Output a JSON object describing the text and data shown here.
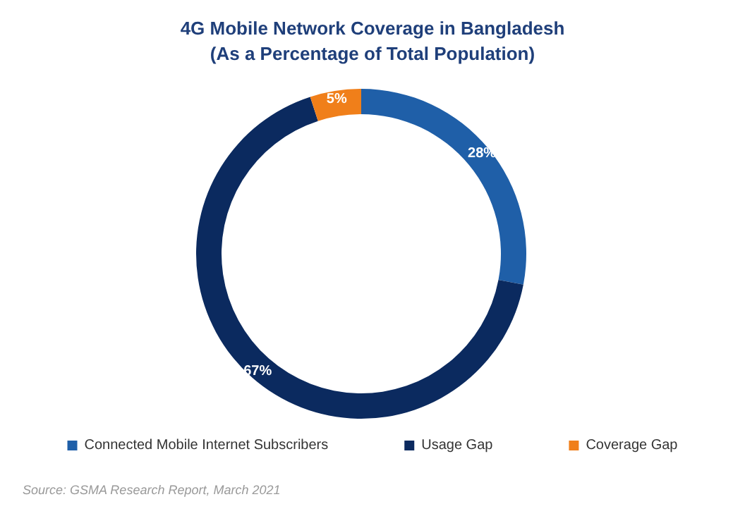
{
  "chart_data": {
    "type": "donut",
    "title": "4G Mobile Network Coverage in Bangladesh\n(As a Percentage of Total Population)",
    "categories": [
      "Connected Mobile Internet Subscribers",
      "Usage Gap",
      "Coverage Gap"
    ],
    "values": [
      28,
      67,
      5
    ],
    "colors": [
      "#1f5fa8",
      "#0b2a5f",
      "#f07f1a"
    ],
    "value_labels": [
      "28%",
      "67%",
      "5%"
    ],
    "legend": "bottom",
    "annotations": [
      "Source: GSMA Research Report, March 2021"
    ]
  }
}
